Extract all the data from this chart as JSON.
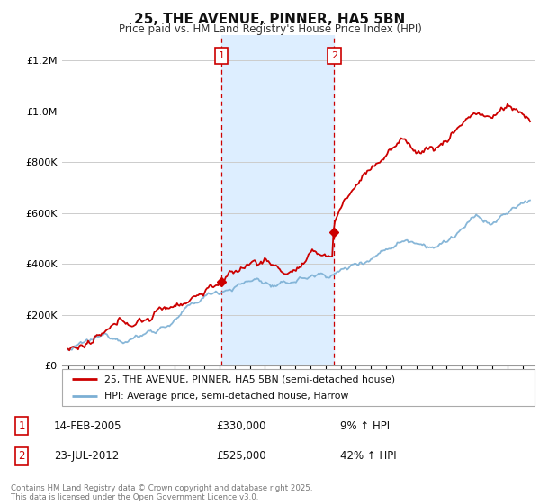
{
  "title": "25, THE AVENUE, PINNER, HA5 5BN",
  "subtitle": "Price paid vs. HM Land Registry's House Price Index (HPI)",
  "legend_line1": "25, THE AVENUE, PINNER, HA5 5BN (semi-detached house)",
  "legend_line2": "HPI: Average price, semi-detached house, Harrow",
  "annotation1_date": "14-FEB-2005",
  "annotation1_price": "£330,000",
  "annotation1_hpi": "9% ↑ HPI",
  "annotation2_date": "23-JUL-2012",
  "annotation2_price": "£525,000",
  "annotation2_hpi": "42% ↑ HPI",
  "footer": "Contains HM Land Registry data © Crown copyright and database right 2025.\nThis data is licensed under the Open Government Licence v3.0.",
  "sale1_year": 2005.12,
  "sale1_price": 330000,
  "sale2_year": 2012.56,
  "sale2_price": 525000,
  "red_color": "#cc0000",
  "blue_color": "#7bafd4",
  "shade_color": "#ddeeff",
  "vline_color": "#cc0000",
  "background_color": "#ffffff",
  "grid_color": "#cccccc",
  "ylim_max": 1300000,
  "year_start": 1995,
  "year_end": 2025
}
